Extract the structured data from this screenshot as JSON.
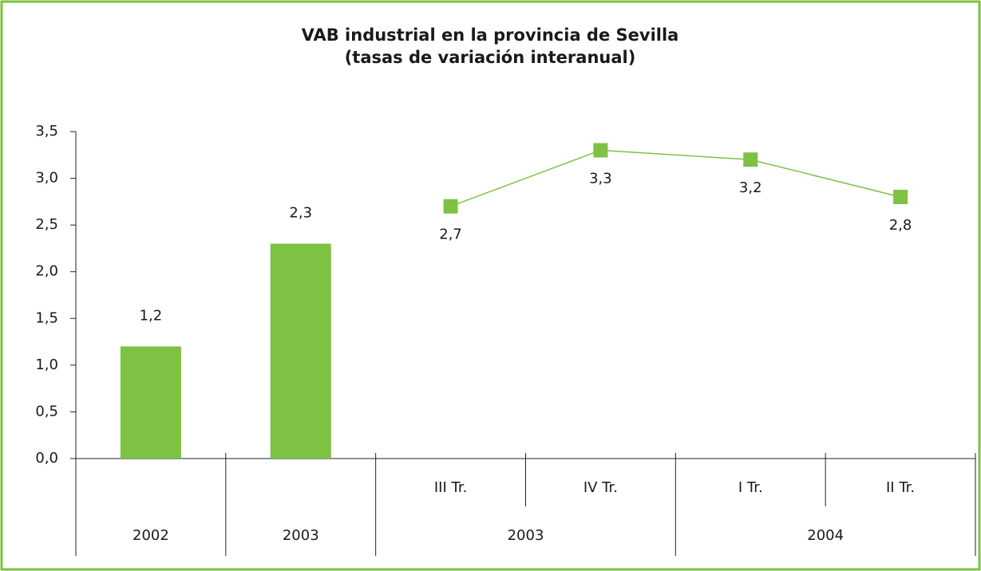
{
  "chart_data": {
    "type": "bar-line",
    "title": [
      "VAB industrial en la provincia de Sevilla",
      "(tasas de variación interanual)"
    ],
    "categories": [
      null,
      null,
      "III Tr.",
      "IV Tr.",
      "I Tr.",
      "II Tr."
    ],
    "groups": [
      {
        "label": "2002",
        "span": 1
      },
      {
        "label": "2003",
        "span": 1
      },
      {
        "label": "2003",
        "span": 2
      },
      {
        "label": "2004",
        "span": 2
      }
    ],
    "series": [
      {
        "type": "bar",
        "color": "#7dc242",
        "values": [
          1.2,
          2.3,
          null,
          null,
          null,
          null
        ],
        "value_labels": [
          "1,2",
          "2,3",
          null,
          null,
          null,
          null
        ]
      },
      {
        "type": "line",
        "color": "#7dc242",
        "values": [
          null,
          null,
          2.7,
          3.3,
          3.2,
          2.8
        ],
        "value_labels": [
          null,
          null,
          "2,7",
          "3,3",
          "3,2",
          "2,8"
        ]
      }
    ],
    "ylim": [
      0,
      3.5
    ],
    "yticks": [
      {
        "value": 0,
        "label": "0,0"
      },
      {
        "value": 0.5,
        "label": "0,5"
      },
      {
        "value": 1,
        "label": "1,0"
      },
      {
        "value": 1.5,
        "label": "1,5"
      },
      {
        "value": 2,
        "label": "2,0"
      },
      {
        "value": 2.5,
        "label": "2,5"
      },
      {
        "value": 3,
        "label": "3,0"
      },
      {
        "value": 3.5,
        "label": "3,5"
      }
    ],
    "grid": false
  }
}
